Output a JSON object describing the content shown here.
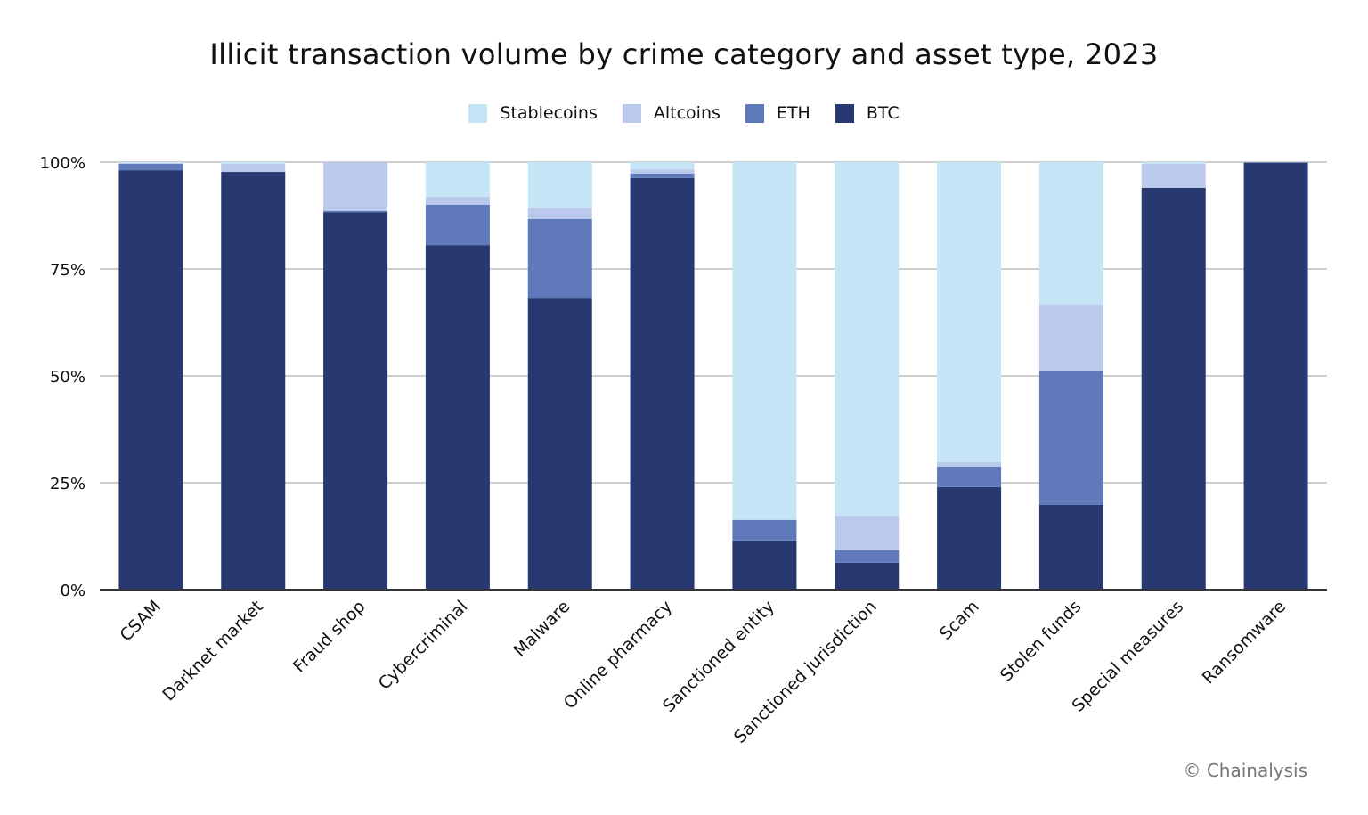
{
  "chart_data": {
    "type": "bar",
    "stacked": true,
    "title": "Illicit transaction volume by crime category and asset type, 2023",
    "xlabel": "",
    "ylabel": "",
    "ylim": [
      0,
      100
    ],
    "yticks": [
      "0%",
      "25%",
      "50%",
      "75%",
      "100%"
    ],
    "ytick_values": [
      0,
      25,
      50,
      75,
      100
    ],
    "grid": true,
    "legend_position": "top",
    "categories": [
      "CSAM",
      "Darknet market",
      "Fraud shop",
      "Cybercriminal",
      "Malware",
      "Online pharmacy",
      "Sanctioned entity",
      "Sanctioned jurisdiction",
      "Scam",
      "Stolen funds",
      "Special measures",
      "Ransomware"
    ],
    "series": [
      {
        "name": "BTC",
        "color": "#283870",
        "values": [
          98.1,
          97.7,
          88.3,
          80.6,
          68.1,
          96.3,
          11.5,
          6.3,
          24.0,
          19.8,
          94.0,
          99.9
        ]
      },
      {
        "name": "ETH",
        "color": "#6079bb",
        "values": [
          1.5,
          0.0,
          0.3,
          9.4,
          18.6,
          1.0,
          4.8,
          2.9,
          4.8,
          31.5,
          0.0,
          0.0
        ]
      },
      {
        "name": "Altcoins",
        "color": "#bbc9ec",
        "values": [
          0.2,
          1.9,
          11.4,
          1.9,
          2.6,
          1.0,
          0.0,
          8.1,
          1.0,
          15.4,
          5.6,
          0.0
        ]
      },
      {
        "name": "Stablecoins",
        "color": "#c5e5f6",
        "values": [
          0.2,
          0.4,
          0.0,
          8.1,
          10.7,
          1.7,
          83.7,
          82.7,
          70.2,
          33.3,
          0.4,
          0.1
        ]
      }
    ],
    "legend_order": [
      "Stablecoins",
      "Altcoins",
      "ETH",
      "BTC"
    ]
  },
  "credit": "© Chainalysis"
}
